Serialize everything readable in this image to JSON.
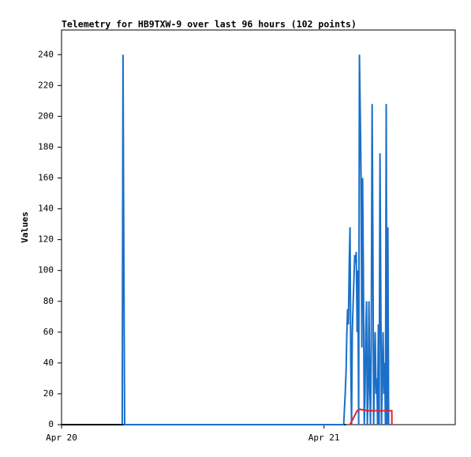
{
  "chart_data": {
    "type": "line",
    "title": "Telemetry for HB9TXW-9 over last 96 hours (102 points)",
    "y_label": "Values",
    "xlim": [
      0,
      36
    ],
    "xticks": [
      {
        "value": 0,
        "label": "Apr 20"
      },
      {
        "value": 24,
        "label": "Apr 21"
      }
    ],
    "ylim": [
      0,
      256
    ],
    "yticks": [
      0,
      20,
      40,
      60,
      80,
      100,
      120,
      140,
      160,
      180,
      200,
      220,
      240
    ],
    "series": [
      {
        "color": "#000000",
        "x": [
          0,
          26.0
        ],
        "values": [
          0,
          0
        ]
      },
      {
        "color": "#1a6fc9",
        "x": [
          5.55,
          5.62,
          5.69,
          5.77,
          25.8,
          25.87,
          25.94,
          26.02,
          26.09,
          26.16,
          26.23,
          26.31,
          26.38,
          26.45,
          26.52,
          26.59,
          26.67,
          26.81,
          26.88,
          26.95,
          27.03,
          27.1,
          27.17,
          27.24,
          27.32,
          27.39,
          27.46,
          27.53,
          27.6,
          27.68,
          27.75,
          27.82,
          27.89,
          27.96,
          28.04,
          28.11,
          28.18,
          28.25,
          28.32,
          28.4,
          28.47,
          28.54,
          28.68,
          28.76,
          28.83,
          28.9,
          28.97,
          29.04,
          29.12,
          29.19,
          29.26,
          29.33,
          29.4,
          29.48,
          29.55,
          29.62,
          29.69,
          29.76,
          29.84,
          29.91
        ],
        "values": [
          0,
          240,
          120,
          0,
          0,
          10,
          20,
          35,
          60,
          75,
          65,
          105,
          128,
          40,
          0,
          60,
          80,
          110,
          105,
          112,
          60,
          100,
          0,
          240,
          200,
          160,
          50,
          160,
          100,
          0,
          20,
          60,
          80,
          0,
          20,
          80,
          30,
          0,
          50,
          208,
          120,
          0,
          60,
          20,
          30,
          0,
          65,
          0,
          176,
          90,
          0,
          30,
          60,
          20,
          40,
          0,
          208,
          0,
          128,
          0
        ]
      },
      {
        "color": "#e8202a",
        "x": [
          26.38,
          27.03,
          27.24,
          28.0,
          29.0,
          30.2,
          30.21
        ],
        "values": [
          0,
          9,
          10,
          9,
          9,
          9,
          0
        ]
      }
    ]
  }
}
